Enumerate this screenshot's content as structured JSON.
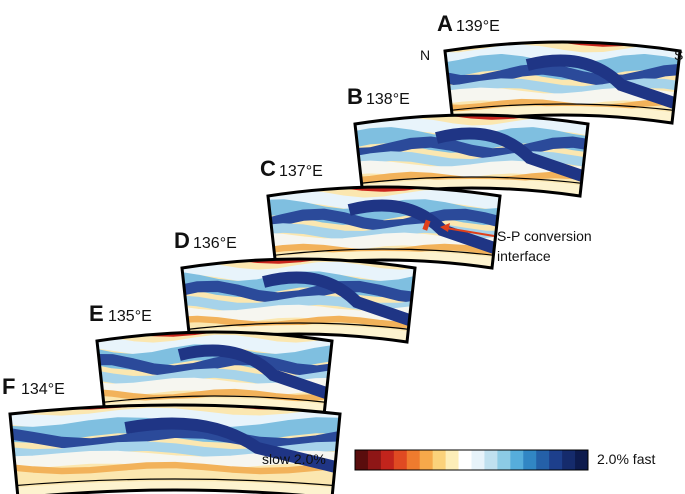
{
  "panels": [
    {
      "letter": "A",
      "longitude": "139°E"
    },
    {
      "letter": "B",
      "longitude": "138°E"
    },
    {
      "letter": "C",
      "longitude": "137°E"
    },
    {
      "letter": "D",
      "longitude": "136°E"
    },
    {
      "letter": "E",
      "longitude": "135°E"
    },
    {
      "letter": "F",
      "longitude": "134°E"
    }
  ],
  "orientation": {
    "north": "N",
    "south": "S"
  },
  "annotation": {
    "line1": "S-P conversion",
    "line2": "interface"
  },
  "colorbar": {
    "left_label": "slow 2.0%",
    "right_label": "2.0% fast"
  }
}
